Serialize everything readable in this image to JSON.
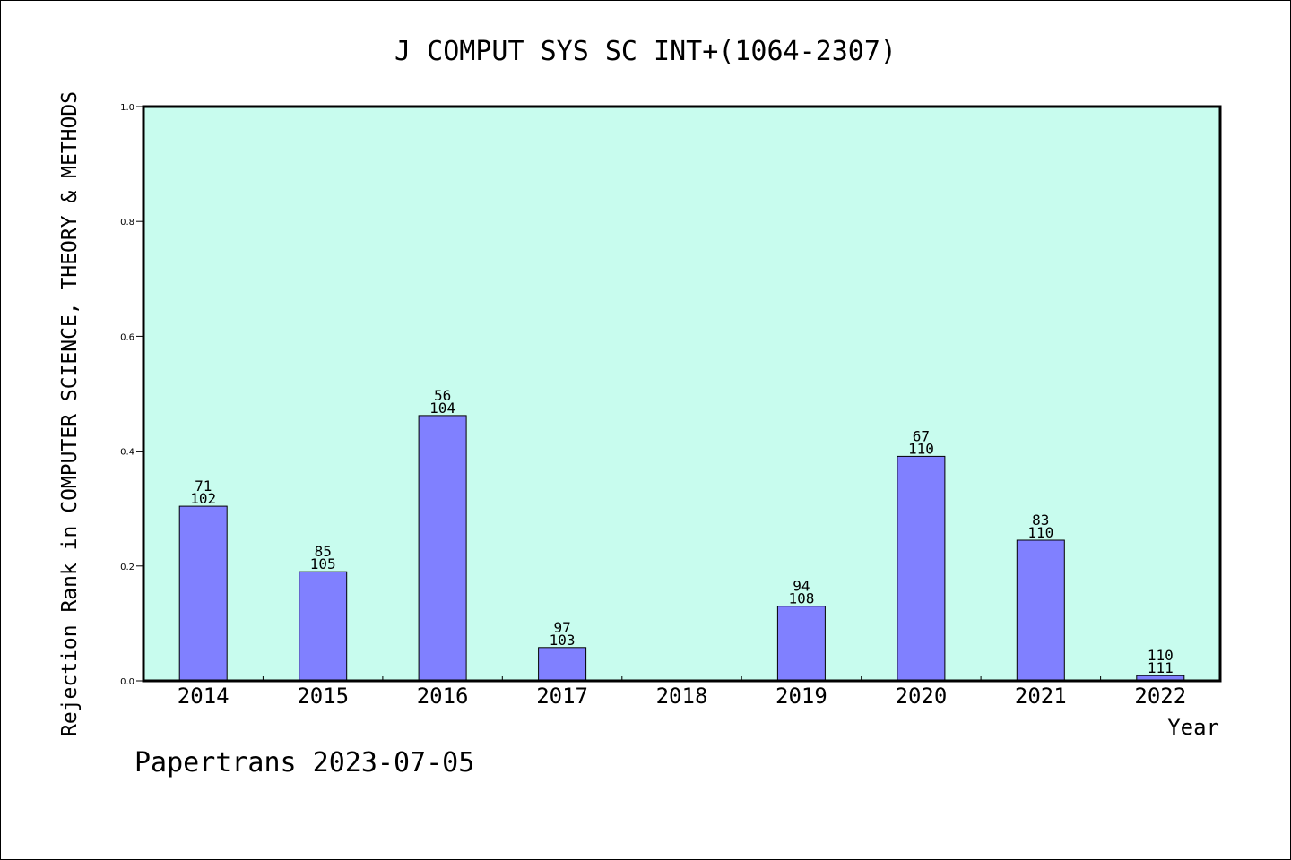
{
  "chart_data": {
    "type": "bar",
    "title": "J COMPUT SYS SC INT+(1064-2307)",
    "xlabel": "Year",
    "ylabel": "Rejection Rank in COMPUTER SCIENCE, THEORY & METHODS",
    "categories": [
      "2014",
      "2015",
      "2016",
      "2017",
      "2018",
      "2019",
      "2020",
      "2021",
      "2022"
    ],
    "values": [
      0.304,
      0.19,
      0.462,
      0.058,
      null,
      0.13,
      0.391,
      0.245,
      0.009
    ],
    "rank_labels": [
      [
        "71",
        "102"
      ],
      [
        "85",
        "105"
      ],
      [
        "56",
        "104"
      ],
      [
        "97",
        "103"
      ],
      null,
      [
        "94",
        "108"
      ],
      [
        "67",
        "110"
      ],
      [
        "83",
        "110"
      ],
      [
        "110",
        "111"
      ]
    ],
    "ylim": [
      0,
      1.0
    ],
    "yticks": [
      "0.0",
      "0.2",
      "0.4",
      "0.6",
      "0.8",
      "1.0"
    ],
    "grid": false,
    "legend": "none",
    "colors": {
      "plot_background": "#c8fcee",
      "bar_fill": "#8080ff",
      "bar_stroke": "#000000",
      "axis": "#000000"
    }
  },
  "footer": {
    "text": "Papertrans 2023-07-05"
  }
}
